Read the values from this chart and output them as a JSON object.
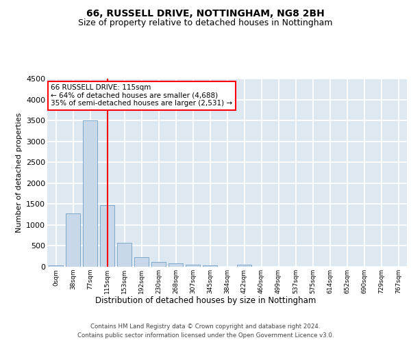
{
  "title1": "66, RUSSELL DRIVE, NOTTINGHAM, NG8 2BH",
  "title2": "Size of property relative to detached houses in Nottingham",
  "xlabel": "Distribution of detached houses by size in Nottingham",
  "ylabel": "Number of detached properties",
  "bar_labels": [
    "0sqm",
    "38sqm",
    "77sqm",
    "115sqm",
    "153sqm",
    "192sqm",
    "230sqm",
    "268sqm",
    "307sqm",
    "345sqm",
    "384sqm",
    "422sqm",
    "460sqm",
    "499sqm",
    "537sqm",
    "575sqm",
    "614sqm",
    "652sqm",
    "690sqm",
    "729sqm",
    "767sqm"
  ],
  "bar_values": [
    35,
    1270,
    3500,
    1470,
    575,
    235,
    115,
    80,
    55,
    35,
    0,
    55,
    0,
    0,
    0,
    0,
    0,
    0,
    0,
    0,
    0
  ],
  "bar_color": "#c8d8e8",
  "bar_edgecolor": "#7aa8cc",
  "vline_x": 3,
  "vline_color": "red",
  "annotation_text": "66 RUSSELL DRIVE: 115sqm\n← 64% of detached houses are smaller (4,688)\n35% of semi-detached houses are larger (2,531) →",
  "annotation_box_color": "white",
  "annotation_box_edgecolor": "red",
  "ylim": [
    0,
    4500
  ],
  "yticks": [
    0,
    500,
    1000,
    1500,
    2000,
    2500,
    3000,
    3500,
    4000,
    4500
  ],
  "footer1": "Contains HM Land Registry data © Crown copyright and database right 2024.",
  "footer2": "Contains public sector information licensed under the Open Government Licence v3.0.",
  "plot_bg_color": "#dde8f0",
  "grid_color": "#ffffff",
  "title_fontsize": 10,
  "subtitle_fontsize": 9,
  "ann_fontsize": 7.5,
  "xlabel_fontsize": 8.5,
  "ylabel_fontsize": 8
}
